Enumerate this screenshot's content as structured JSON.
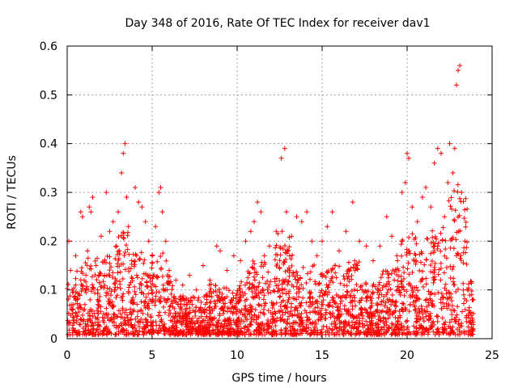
{
  "chart_data": {
    "type": "scatter",
    "title": "Day 348 of 2016, Rate Of TEC Index for receiver dav1",
    "xlabel": "GPS time / hours",
    "ylabel": "ROTI / TECUs",
    "xlim": [
      0,
      25
    ],
    "ylim": [
      0,
      0.6
    ],
    "xticks": [
      0,
      5,
      10,
      15,
      20,
      25
    ],
    "yticks": [
      0,
      0.1,
      0.2,
      0.3,
      0.4,
      0.5,
      0.6
    ],
    "xtick_labels": [
      "0",
      "5",
      "10",
      "15",
      "20",
      "25"
    ],
    "ytick_labels": [
      "0",
      "0.1",
      "0.2",
      "0.3",
      "0.4",
      "0.5",
      "0.6"
    ],
    "grid": true,
    "marker": "+",
    "color": "#ff0000",
    "series": [
      {
        "name": "ROTI",
        "points": [
          [
            0.1,
            0.2
          ],
          [
            0.2,
            0.14
          ],
          [
            0.3,
            0.1
          ],
          [
            0.5,
            0.17
          ],
          [
            0.6,
            0.08
          ],
          [
            0.8,
            0.26
          ],
          [
            0.9,
            0.25
          ],
          [
            1.0,
            0.12
          ],
          [
            1.2,
            0.18
          ],
          [
            1.3,
            0.27
          ],
          [
            1.4,
            0.26
          ],
          [
            1.5,
            0.29
          ],
          [
            1.7,
            0.15
          ],
          [
            2.0,
            0.21
          ],
          [
            2.2,
            0.13
          ],
          [
            2.3,
            0.3
          ],
          [
            2.5,
            0.22
          ],
          [
            2.7,
            0.24
          ],
          [
            2.9,
            0.19
          ],
          [
            3.0,
            0.26
          ],
          [
            3.2,
            0.34
          ],
          [
            3.3,
            0.38
          ],
          [
            3.4,
            0.4
          ],
          [
            3.5,
            0.29
          ],
          [
            3.6,
            0.23
          ],
          [
            3.8,
            0.16
          ],
          [
            4.0,
            0.31
          ],
          [
            4.2,
            0.28
          ],
          [
            4.4,
            0.27
          ],
          [
            4.6,
            0.24
          ],
          [
            4.8,
            0.2
          ],
          [
            5.0,
            0.17
          ],
          [
            5.2,
            0.23
          ],
          [
            5.4,
            0.3
          ],
          [
            5.5,
            0.31
          ],
          [
            5.6,
            0.26
          ],
          [
            5.8,
            0.2
          ],
          [
            6.0,
            0.14
          ],
          [
            6.4,
            0.12
          ],
          [
            6.8,
            0.11
          ],
          [
            7.2,
            0.13
          ],
          [
            7.6,
            0.1
          ],
          [
            8.0,
            0.15
          ],
          [
            8.4,
            0.12
          ],
          [
            8.8,
            0.19
          ],
          [
            9.0,
            0.18
          ],
          [
            9.4,
            0.14
          ],
          [
            9.8,
            0.17
          ],
          [
            10.2,
            0.16
          ],
          [
            10.5,
            0.2
          ],
          [
            10.8,
            0.22
          ],
          [
            11.0,
            0.24
          ],
          [
            11.2,
            0.28
          ],
          [
            11.4,
            0.26
          ],
          [
            11.6,
            0.17
          ],
          [
            11.9,
            0.19
          ],
          [
            12.3,
            0.22
          ],
          [
            12.6,
            0.37
          ],
          [
            12.8,
            0.39
          ],
          [
            12.9,
            0.26
          ],
          [
            13.2,
            0.21
          ],
          [
            13.5,
            0.25
          ],
          [
            13.8,
            0.24
          ],
          [
            14.1,
            0.26
          ],
          [
            14.4,
            0.2
          ],
          [
            14.7,
            0.17
          ],
          [
            15.0,
            0.2
          ],
          [
            15.3,
            0.23
          ],
          [
            15.6,
            0.26
          ],
          [
            16.0,
            0.18
          ],
          [
            16.4,
            0.22
          ],
          [
            16.8,
            0.28
          ],
          [
            17.2,
            0.2
          ],
          [
            17.6,
            0.19
          ],
          [
            18.0,
            0.16
          ],
          [
            18.4,
            0.19
          ],
          [
            18.8,
            0.25
          ],
          [
            19.1,
            0.21
          ],
          [
            19.4,
            0.17
          ],
          [
            19.7,
            0.3
          ],
          [
            19.9,
            0.32
          ],
          [
            20.0,
            0.38
          ],
          [
            20.1,
            0.37
          ],
          [
            20.3,
            0.27
          ],
          [
            20.6,
            0.24
          ],
          [
            20.9,
            0.29
          ],
          [
            21.1,
            0.31
          ],
          [
            21.4,
            0.27
          ],
          [
            21.6,
            0.36
          ],
          [
            21.8,
            0.39
          ],
          [
            22.0,
            0.38
          ],
          [
            22.2,
            0.25
          ],
          [
            22.4,
            0.32
          ],
          [
            22.5,
            0.4
          ],
          [
            22.7,
            0.34
          ],
          [
            22.8,
            0.39
          ],
          [
            22.9,
            0.52
          ],
          [
            23.0,
            0.55
          ],
          [
            23.1,
            0.56
          ],
          [
            23.2,
            0.3
          ],
          [
            23.4,
            0.2
          ],
          [
            23.6,
            0.1
          ],
          [
            23.8,
            0.09
          ],
          [
            23.9,
            0.08
          ]
        ]
      }
    ]
  }
}
